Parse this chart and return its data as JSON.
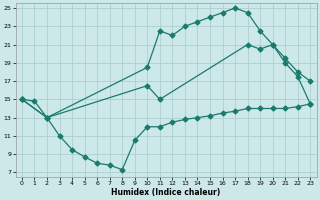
{
  "xlabel": "Humidex (Indice chaleur)",
  "xlim": [
    -0.5,
    23.5
  ],
  "ylim": [
    6.5,
    25.5
  ],
  "xticks": [
    0,
    1,
    2,
    3,
    4,
    5,
    6,
    7,
    8,
    9,
    10,
    11,
    12,
    13,
    14,
    15,
    16,
    17,
    18,
    19,
    20,
    21,
    22,
    23
  ],
  "yticks": [
    7,
    9,
    11,
    13,
    15,
    17,
    19,
    21,
    23,
    25
  ],
  "background_color": "#cde8e8",
  "grid_color": "#aed0d0",
  "line_color": "#1a7a6e",
  "line1_x": [
    0,
    1,
    2,
    10,
    11,
    12,
    13,
    14,
    15,
    16,
    17,
    18,
    19,
    20,
    21,
    22,
    23
  ],
  "line1_y": [
    15,
    14.8,
    13,
    18.5,
    22.5,
    22.0,
    23.0,
    23.5,
    24.0,
    24.5,
    25.0,
    24.5,
    22.5,
    21.0,
    19.0,
    17.5,
    14.5
  ],
  "line2_x": [
    0,
    2,
    10,
    11,
    18,
    19,
    20,
    21,
    22,
    23
  ],
  "line2_y": [
    15,
    13,
    16.5,
    15.0,
    21.0,
    20.5,
    21.0,
    19.5,
    18.0,
    17.0
  ],
  "line3_x": [
    0,
    2,
    3,
    4,
    5,
    6,
    7,
    8,
    9,
    10,
    11,
    12,
    13,
    14,
    15,
    16,
    17,
    18,
    19,
    20,
    21,
    22,
    23
  ],
  "line3_y": [
    15,
    13,
    11.0,
    9.5,
    8.7,
    8.0,
    7.8,
    7.3,
    10.5,
    12.0,
    12.0,
    12.5,
    12.8,
    13.0,
    13.2,
    13.5,
    13.7,
    14.0,
    14.0,
    14.0,
    14.0,
    14.2,
    14.5
  ]
}
